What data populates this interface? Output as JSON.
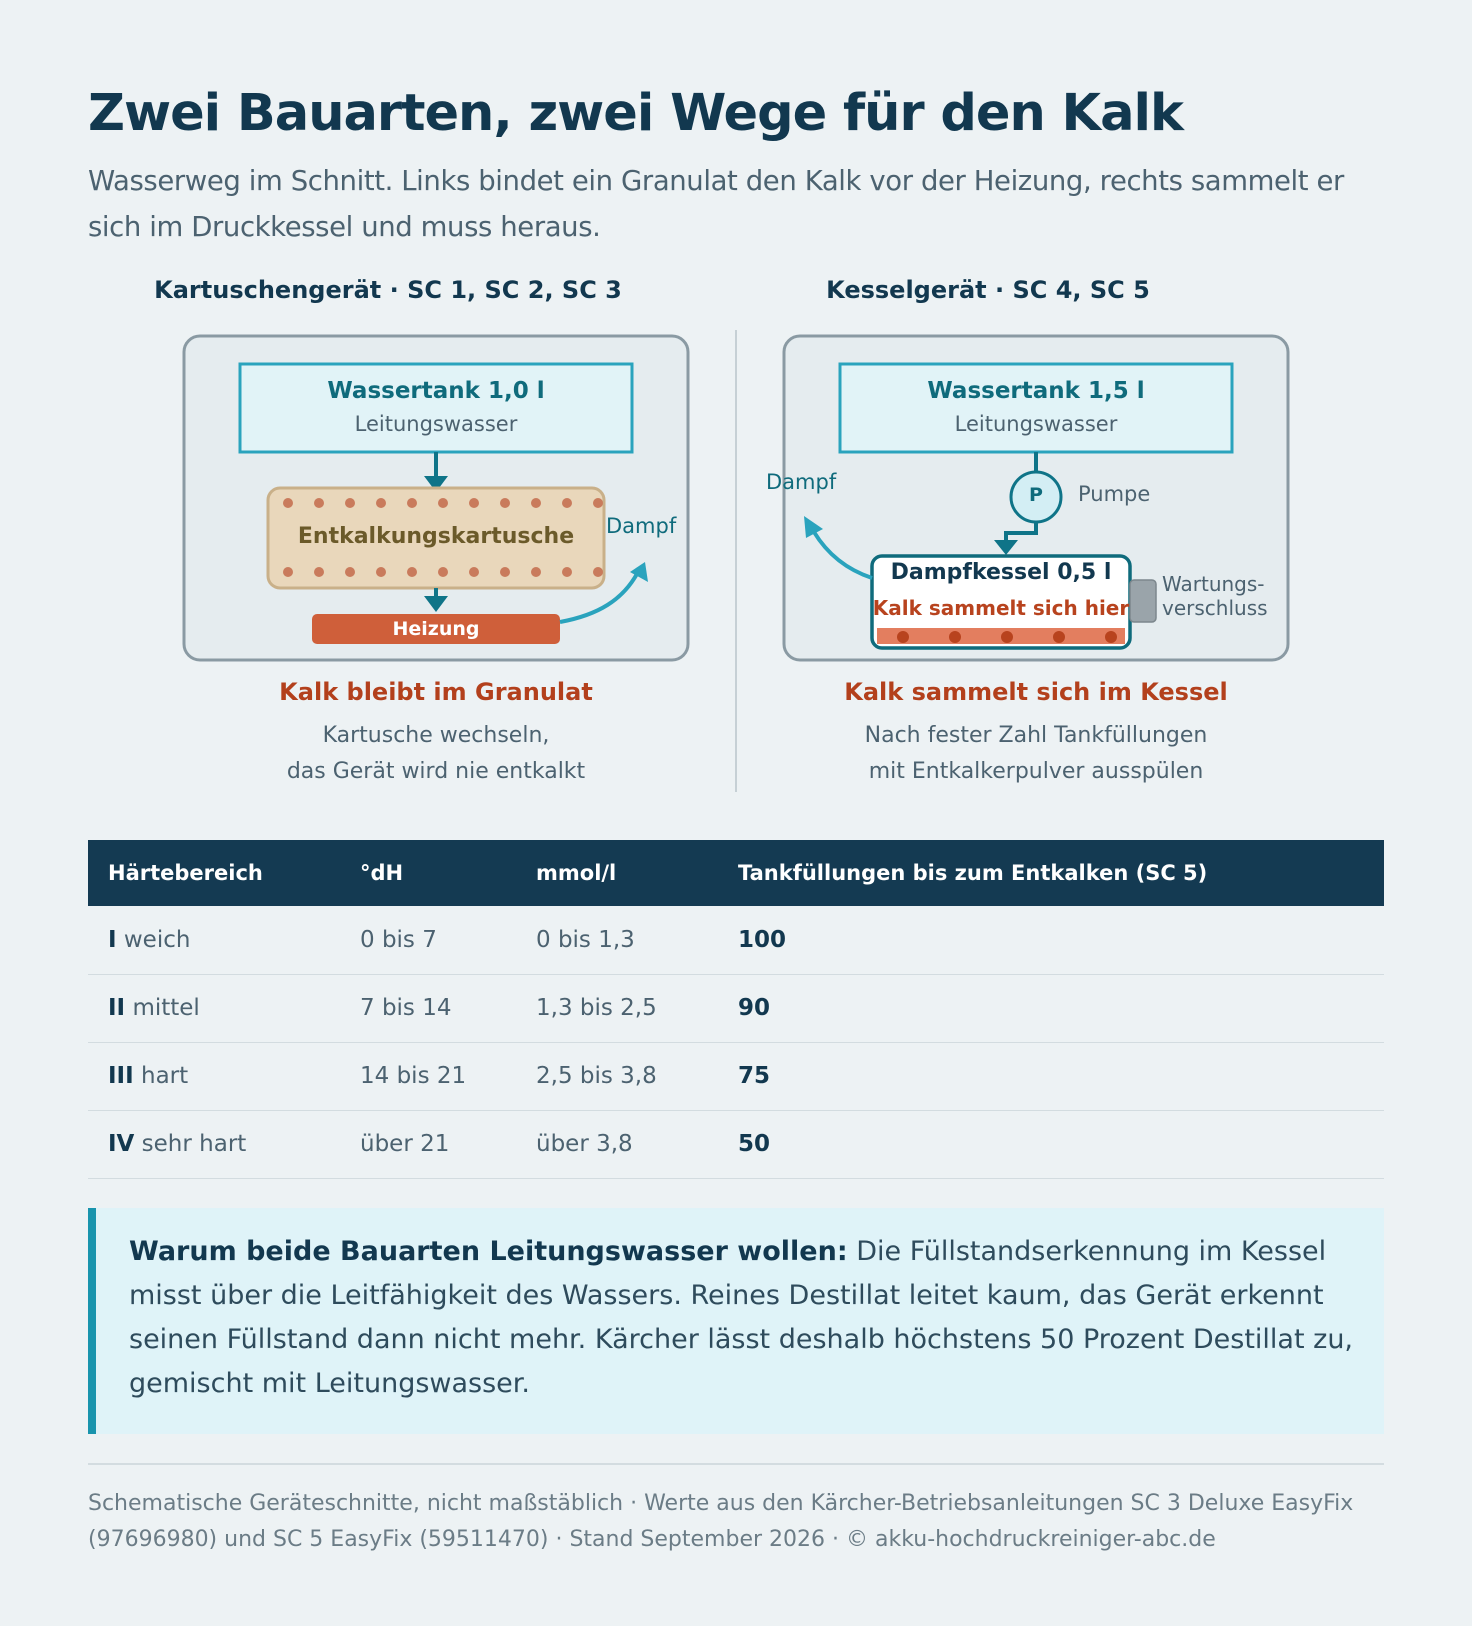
{
  "title": "Zwei Bauarten, zwei Wege für den Kalk",
  "subtitle": "Wasserweg im Schnitt. Links bindet ein Granulat den Kalk vor der Heizung, rechts sammelt er sich im Druckkessel und muss heraus.",
  "left": {
    "heading": "Kartuschengerät · SC 1, SC 2, SC 3",
    "tank_title": "Wassertank 1,0 l",
    "tank_sub": "Leitungswasser",
    "cartridge": "Entkalkungskartusche",
    "heater": "Heizung",
    "steam": "Dampf",
    "result_title": "Kalk bleibt im Granulat",
    "result_line1": "Kartusche wechseln,",
    "result_line2": "das Gerät wird nie entkalkt"
  },
  "right": {
    "heading": "Kesselgerät · SC 4, SC 5",
    "tank_title": "Wassertank 1,5 l",
    "tank_sub": "Leitungswasser",
    "pump_symbol": "P",
    "pump": "Pumpe",
    "steam": "Dampf",
    "boiler_title": "Dampfkessel 0,5 l",
    "boiler_sub": "Kalk sammelt sich hier",
    "service_line1": "Wartungs-",
    "service_line2": "verschluss",
    "result_title": "Kalk sammelt sich im Kessel",
    "result_line1": "Nach fester Zahl Tankfüllungen",
    "result_line2": "mit Entkalkerpulver ausspülen"
  },
  "table": {
    "headers": [
      "Härtebereich",
      "°dH",
      "mmol/l",
      "Tankfüllungen bis zum Entkalken (SC 5)"
    ],
    "rows": [
      {
        "level": "I",
        "name": "weich",
        "dh": "0 bis 7",
        "mmol": "0 bis 1,3",
        "fills": "100"
      },
      {
        "level": "II",
        "name": "mittel",
        "dh": "7 bis 14",
        "mmol": "1,3 bis 2,5",
        "fills": "90"
      },
      {
        "level": "III",
        "name": "hart",
        "dh": "14 bis 21",
        "mmol": "2,5 bis 3,8",
        "fills": "75"
      },
      {
        "level": "IV",
        "name": "sehr hart",
        "dh": "über 21",
        "mmol": "über 3,8",
        "fills": "50"
      }
    ]
  },
  "note": {
    "lead": "Warum beide Bauarten Leitungswasser wollen:",
    "text": " Die Füllstandserkennung im Kessel misst über die Leitfähigkeit des Wassers. Reines Destillat leitet kaum, das Gerät erkennt seinen Füllstand dann nicht mehr. Kärcher lässt deshalb höchstens 50 Prozent Destillat zu, gemischt mit Leitungswasser."
  },
  "footer": "Schematische Geräteschnitte, nicht maßstäblich · Werte aus den Kärcher-Betriebsanleitungen SC 3 Deluxe EasyFix (97696980) und SC 5 EasyFix (59511470) · Stand September 2026 · © akku-hochdruckreiniger-abc.de",
  "colors": {
    "navy": "#12384f",
    "teal": "#1894ad",
    "rust": "#b3401c",
    "heater": "#cf5f3a",
    "cartridge": "#e9d7bb",
    "note_bg": "#dff3f8"
  }
}
